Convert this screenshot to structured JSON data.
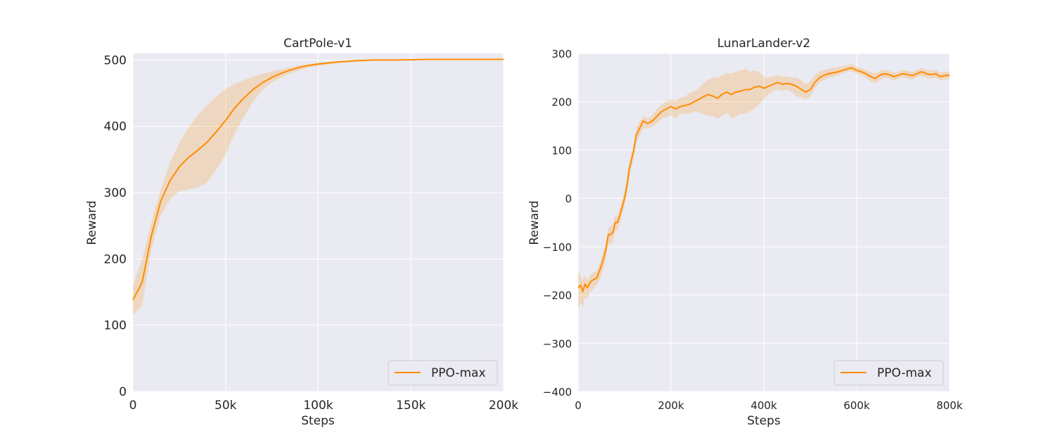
{
  "chart_data": [
    {
      "type": "line",
      "title": "CartPole-v1",
      "xlabel": "Steps",
      "ylabel": "Reward",
      "xlim": [
        0,
        200000
      ],
      "ylim": [
        0,
        510
      ],
      "xticks": [
        0,
        50000,
        100000,
        150000,
        200000
      ],
      "xtick_labels": [
        "0",
        "50k",
        "100k",
        "150k",
        "200k"
      ],
      "yticks": [
        0,
        100,
        200,
        300,
        400,
        500
      ],
      "ytick_labels": [
        "0",
        "100",
        "200",
        "300",
        "400",
        "500"
      ],
      "grid": true,
      "legend_position": "lower-right",
      "color": "#ff8c00",
      "series": [
        {
          "name": "PPO-max",
          "x": [
            0,
            5000,
            10000,
            15000,
            20000,
            25000,
            30000,
            35000,
            40000,
            45000,
            50000,
            55000,
            60000,
            65000,
            70000,
            75000,
            80000,
            85000,
            90000,
            95000,
            100000,
            110000,
            120000,
            130000,
            140000,
            150000,
            160000,
            170000,
            180000,
            190000,
            200000
          ],
          "y": [
            138,
            165,
            235,
            287,
            318,
            339,
            353,
            364,
            376,
            392,
            409,
            428,
            443,
            456,
            466,
            474,
            480,
            485,
            489,
            492,
            494,
            497,
            499,
            500,
            500,
            500.5,
            501,
            501,
            501,
            501,
            501
          ],
          "lower": [
            115,
            130,
            215,
            265,
            290,
            302,
            305,
            308,
            315,
            335,
            358,
            390,
            415,
            438,
            455,
            466,
            474,
            480,
            485,
            489,
            491,
            495,
            497,
            499,
            500,
            500,
            500.5,
            501,
            501,
            501,
            501
          ],
          "upper": [
            160,
            200,
            255,
            305,
            345,
            375,
            398,
            417,
            432,
            445,
            456,
            464,
            470,
            475,
            479,
            483,
            486,
            489,
            492,
            494,
            496,
            498,
            500,
            501,
            501,
            501,
            501,
            501,
            501,
            501,
            501
          ]
        }
      ]
    },
    {
      "type": "line",
      "title": "LunarLander-v2",
      "xlabel": "Steps",
      "ylabel": "Reward",
      "xlim": [
        0,
        800000
      ],
      "ylim": [
        -400,
        300
      ],
      "xticks": [
        0,
        200000,
        400000,
        600000,
        800000
      ],
      "xtick_labels": [
        "0",
        "200k",
        "400k",
        "600k",
        "800k"
      ],
      "yticks": [
        -400,
        -300,
        -200,
        -100,
        0,
        100,
        200,
        300
      ],
      "ytick_labels": [
        "−400",
        "−300",
        "−200",
        "−100",
        "0",
        "100",
        "200",
        "300"
      ],
      "grid": true,
      "legend_position": "lower-right",
      "color": "#ff8c00",
      "series": [
        {
          "name": "PPO-max",
          "x": [
            0,
            5000,
            10000,
            15000,
            20000,
            25000,
            30000,
            40000,
            50000,
            60000,
            65000,
            70000,
            75000,
            80000,
            85000,
            90000,
            100000,
            105000,
            110000,
            115000,
            120000,
            125000,
            130000,
            140000,
            150000,
            160000,
            170000,
            180000,
            190000,
            200000,
            210000,
            220000,
            230000,
            240000,
            250000,
            260000,
            270000,
            280000,
            290000,
            300000,
            310000,
            320000,
            330000,
            340000,
            350000,
            360000,
            370000,
            380000,
            390000,
            400000,
            410000,
            420000,
            430000,
            440000,
            450000,
            460000,
            470000,
            480000,
            490000,
            500000,
            510000,
            520000,
            530000,
            540000,
            550000,
            560000,
            570000,
            580000,
            590000,
            600000,
            610000,
            620000,
            630000,
            640000,
            650000,
            660000,
            670000,
            680000,
            690000,
            700000,
            710000,
            720000,
            730000,
            740000,
            750000,
            760000,
            770000,
            780000,
            790000,
            800000
          ],
          "y": [
            -185,
            -180,
            -192,
            -178,
            -185,
            -175,
            -170,
            -165,
            -140,
            -105,
            -75,
            -75,
            -70,
            -50,
            -50,
            -35,
            0,
            25,
            60,
            80,
            100,
            130,
            140,
            160,
            155,
            160,
            170,
            180,
            185,
            190,
            185,
            190,
            192,
            195,
            200,
            205,
            210,
            215,
            212,
            207,
            215,
            220,
            215,
            220,
            222,
            225,
            225,
            230,
            232,
            228,
            232,
            236,
            240,
            236,
            238,
            236,
            232,
            226,
            220,
            225,
            240,
            250,
            255,
            258,
            260,
            262,
            265,
            268,
            270,
            265,
            262,
            258,
            252,
            248,
            255,
            258,
            256,
            252,
            255,
            258,
            256,
            254,
            258,
            262,
            258,
            256,
            258,
            252,
            254,
            255
          ],
          "lower": [
            -230,
            -215,
            -225,
            -205,
            -210,
            -195,
            -190,
            -180,
            -160,
            -125,
            -95,
            -95,
            -90,
            -70,
            -65,
            -50,
            -15,
            10,
            40,
            65,
            85,
            115,
            125,
            145,
            145,
            148,
            155,
            165,
            168,
            172,
            165,
            175,
            175,
            175,
            180,
            178,
            175,
            170,
            170,
            165,
            170,
            178,
            165,
            170,
            175,
            175,
            180,
            185,
            195,
            205,
            215,
            222,
            225,
            222,
            225,
            220,
            210,
            210,
            205,
            210,
            228,
            240,
            245,
            250,
            252,
            255,
            258,
            262,
            263,
            258,
            255,
            250,
            242,
            238,
            245,
            250,
            248,
            244,
            248,
            250,
            248,
            246,
            250,
            254,
            250,
            248,
            250,
            244,
            246,
            247
          ],
          "upper": [
            -150,
            -160,
            -170,
            -160,
            -170,
            -160,
            -155,
            -150,
            -125,
            -90,
            -60,
            -58,
            -55,
            -35,
            -35,
            -20,
            15,
            40,
            75,
            95,
            115,
            145,
            155,
            170,
            165,
            172,
            185,
            195,
            200,
            205,
            202,
            208,
            210,
            218,
            222,
            228,
            238,
            245,
            250,
            250,
            255,
            260,
            258,
            262,
            265,
            268,
            262,
            265,
            262,
            252,
            250,
            252,
            256,
            252,
            252,
            250,
            250,
            245,
            236,
            242,
            255,
            262,
            266,
            268,
            270,
            272,
            274,
            276,
            277,
            272,
            270,
            266,
            262,
            258,
            264,
            266,
            264,
            260,
            262,
            266,
            264,
            262,
            266,
            270,
            266,
            264,
            266,
            260,
            262,
            263
          ]
        }
      ]
    }
  ]
}
